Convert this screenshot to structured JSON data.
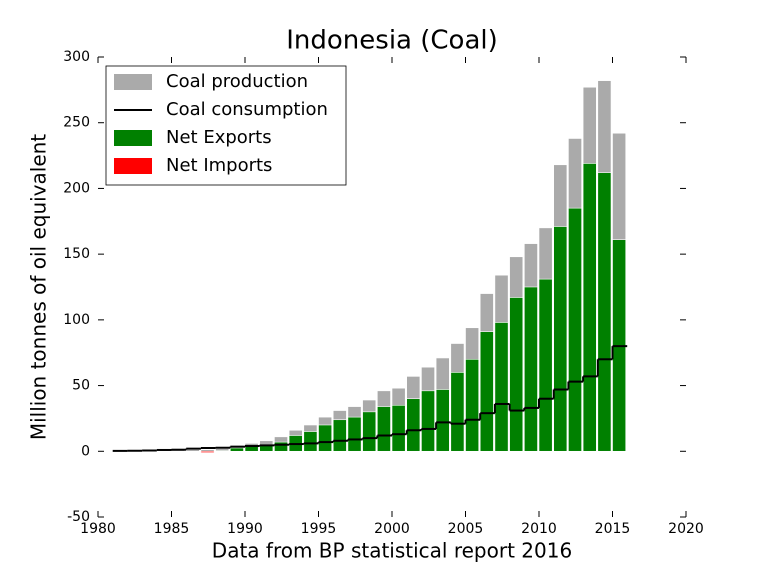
{
  "chart_data": {
    "type": "bar",
    "title": "Indonesia (Coal)",
    "xlabel": "Data from BP statistical report 2016",
    "ylabel": "Million tonnes of oil equivalent",
    "x": [
      1981,
      1982,
      1983,
      1984,
      1985,
      1986,
      1987,
      1988,
      1989,
      1990,
      1991,
      1992,
      1993,
      1994,
      1995,
      1996,
      1997,
      1998,
      1999,
      2000,
      2001,
      2002,
      2003,
      2004,
      2005,
      2006,
      2007,
      2008,
      2009,
      2010,
      2011,
      2012,
      2013,
      2014,
      2015
    ],
    "series": [
      {
        "name": "Coal production",
        "color": "#aaaaaa",
        "kind": "bar",
        "values": [
          0.2,
          0.3,
          0.4,
          0.6,
          1.0,
          1.3,
          1.2,
          2.0,
          4.5,
          6,
          8,
          11,
          16,
          20,
          26,
          31,
          34,
          39,
          46,
          48,
          57,
          64,
          71,
          82,
          94,
          120,
          134,
          148,
          158,
          170,
          218,
          238,
          277,
          282,
          242
        ]
      },
      {
        "name": "Coal consumption",
        "color": "#000000",
        "kind": "step",
        "values": [
          0.3,
          0.4,
          0.6,
          1,
          1.2,
          2,
          2.5,
          2.7,
          3.5,
          4,
          4.5,
          5,
          5.5,
          6,
          7,
          8,
          9,
          10,
          12,
          13,
          16,
          17,
          22,
          21,
          24,
          29,
          36,
          31,
          33,
          40,
          47,
          53,
          57,
          70,
          80
        ]
      },
      {
        "name": "Net Exports",
        "color": "#008000",
        "kind": "bar",
        "values": [
          0,
          0,
          0,
          0,
          0,
          0,
          0,
          0.5,
          2.5,
          4,
          5,
          7,
          12,
          15,
          20,
          24,
          26,
          30,
          34,
          35,
          40,
          46,
          47,
          60,
          70,
          91,
          98,
          117,
          125,
          131,
          171,
          185,
          219,
          212,
          161
        ]
      },
      {
        "name": "Net Imports",
        "color": "#ff0000",
        "kind": "bar",
        "values": [
          0,
          0,
          0,
          0,
          0,
          0,
          -1,
          0,
          0,
          0,
          0,
          0,
          0,
          0,
          0,
          0,
          0,
          0,
          0,
          0,
          0,
          0,
          0,
          0,
          0,
          0,
          0,
          0,
          0,
          0,
          0,
          0,
          0,
          0,
          0
        ]
      }
    ],
    "xlim": [
      1980,
      2020
    ],
    "xticks": [
      1980,
      1985,
      1990,
      1995,
      2000,
      2005,
      2010,
      2015,
      2020
    ],
    "ylim": [
      -50,
      300
    ],
    "yticks": [
      -50,
      0,
      50,
      100,
      150,
      200,
      250,
      300
    ],
    "legend": "upper left"
  }
}
